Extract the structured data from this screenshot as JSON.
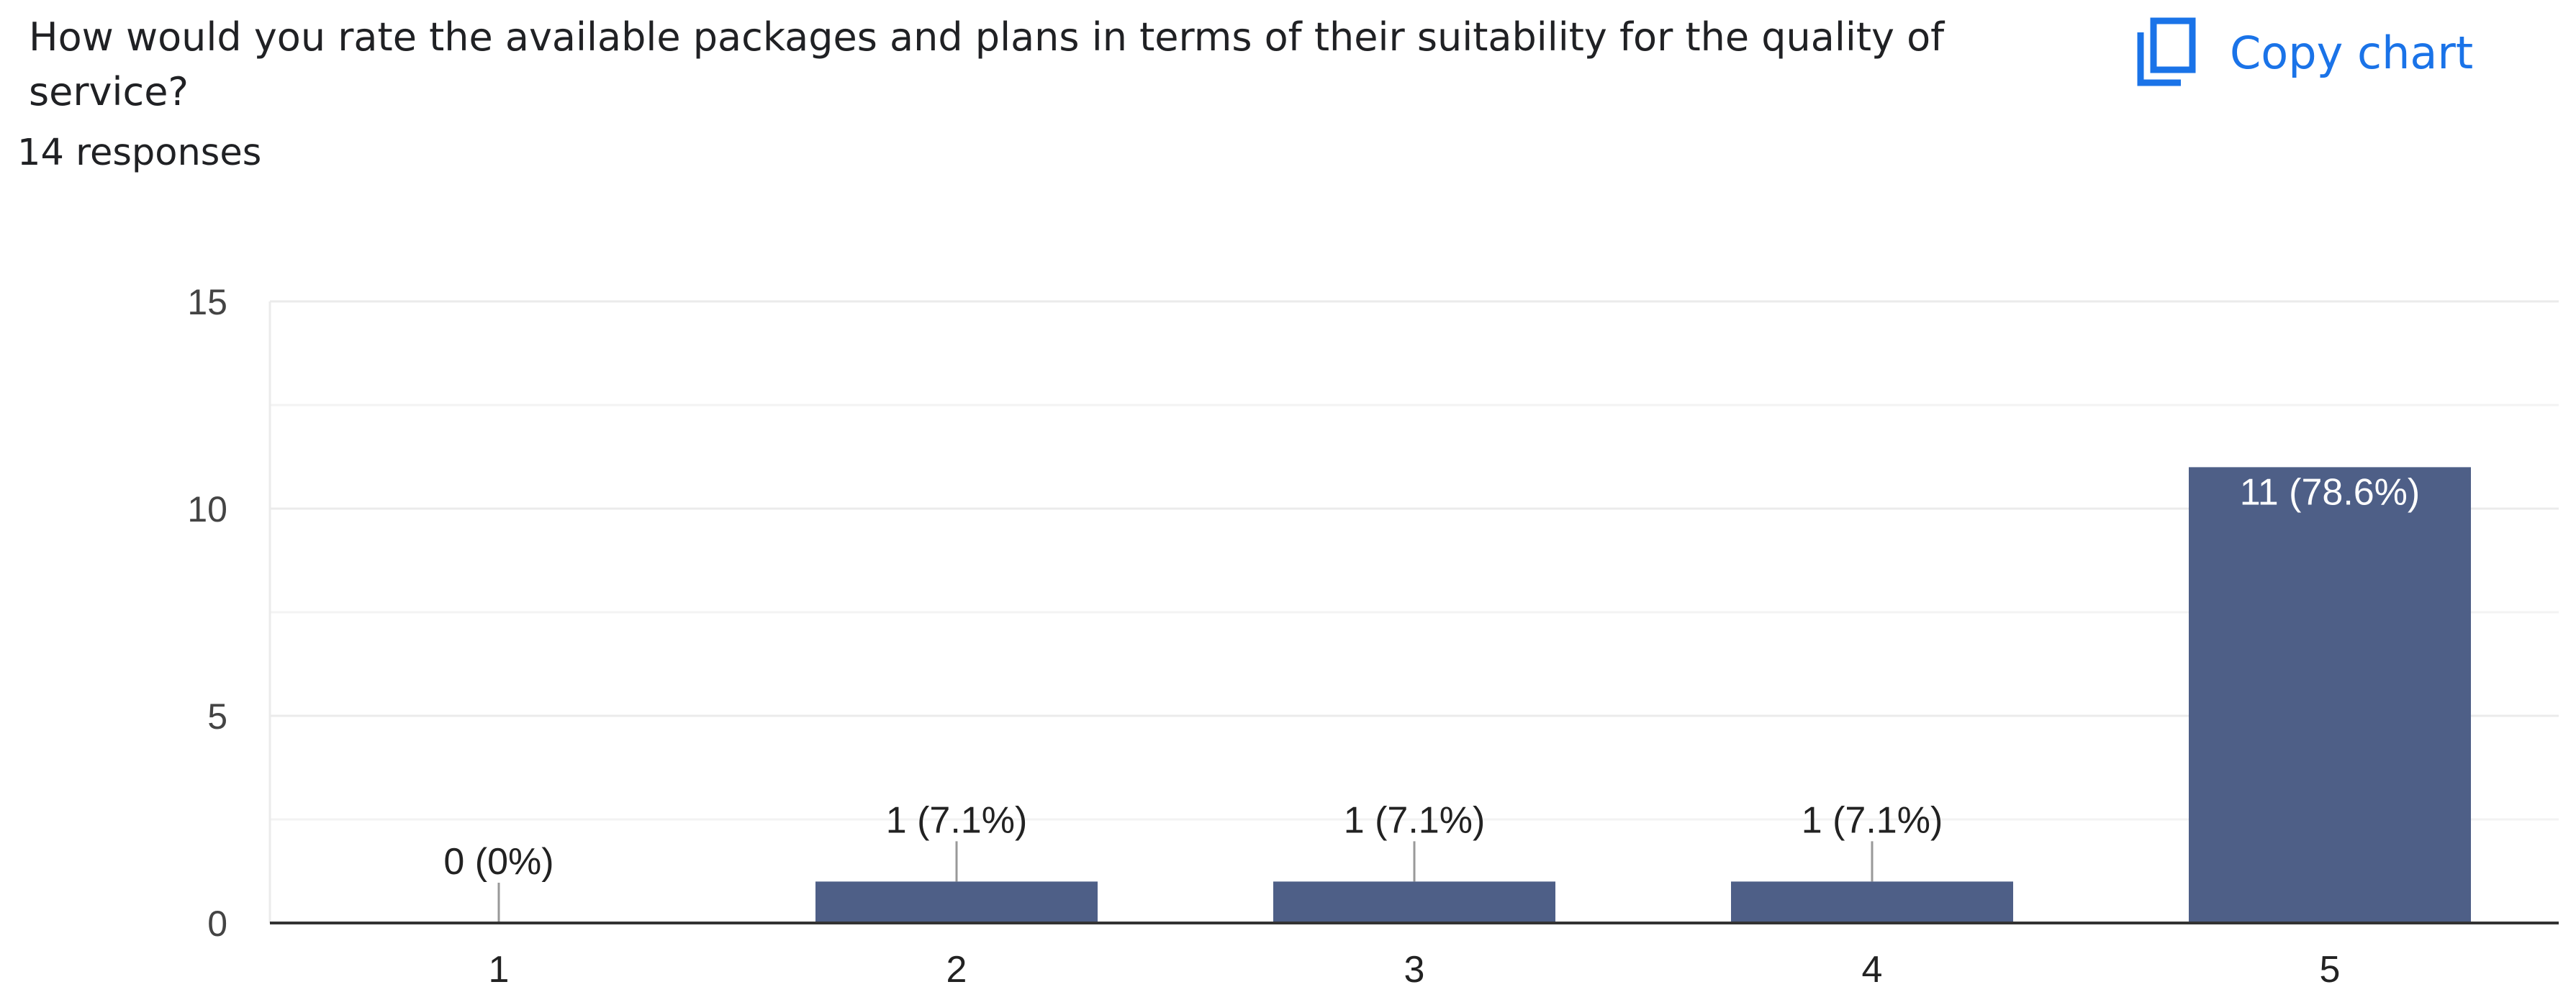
{
  "question": {
    "title": "How would you rate the available packages and plans in terms of their suitability for the quality of service?",
    "responses": "14 responses"
  },
  "toolbar": {
    "copy_label": "Copy chart",
    "copy_icon": "copy-icon"
  },
  "colors": {
    "bar": "#4e5f87",
    "accent": "#1a73e8",
    "grid": "#ebebeb",
    "axis": "#333333",
    "leader": "#999999"
  },
  "chart_data": {
    "type": "bar",
    "title": "",
    "xlabel": "",
    "ylabel": "",
    "categories": [
      "1",
      "2",
      "3",
      "4",
      "5"
    ],
    "values": [
      0,
      1,
      1,
      1,
      11
    ],
    "labels": [
      "0 (0%)",
      "1 (7.1%)",
      "1 (7.1%)",
      "1 (7.1%)",
      "11 (78.6%)"
    ],
    "ylim": [
      0,
      15
    ],
    "yticks": [
      0,
      5,
      10,
      15
    ],
    "grid": true
  }
}
